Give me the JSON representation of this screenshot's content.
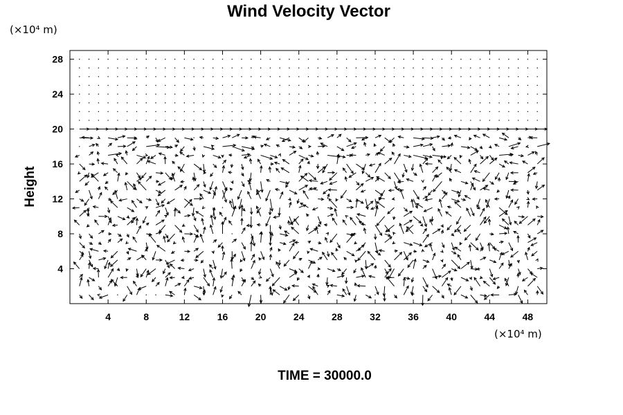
{
  "chart_data": {
    "type": "vector_field",
    "title": "Wind Velocity Vector",
    "ylabel": "Height",
    "y_unit_label": "(×10⁴ m)",
    "x_unit_label": "(×10⁴ m)",
    "xlim": [
      0,
      50
    ],
    "ylim": [
      0,
      29
    ],
    "x_ticks": [
      "4",
      "8",
      "12",
      "16",
      "20",
      "24",
      "28",
      "32",
      "36",
      "40",
      "44",
      "48"
    ],
    "y_ticks": [
      "4",
      "8",
      "12",
      "16",
      "20",
      "24",
      "28"
    ],
    "footer": "TIME = 30000.0",
    "grid": false,
    "vectors_description": "dense field of arrows; strong horizontal flow near height 18-20, mixed vertical/oblique vectors below height 20, near-zero dots above height 20"
  },
  "colors": {
    "ink": "#000000",
    "background": "#ffffff"
  }
}
